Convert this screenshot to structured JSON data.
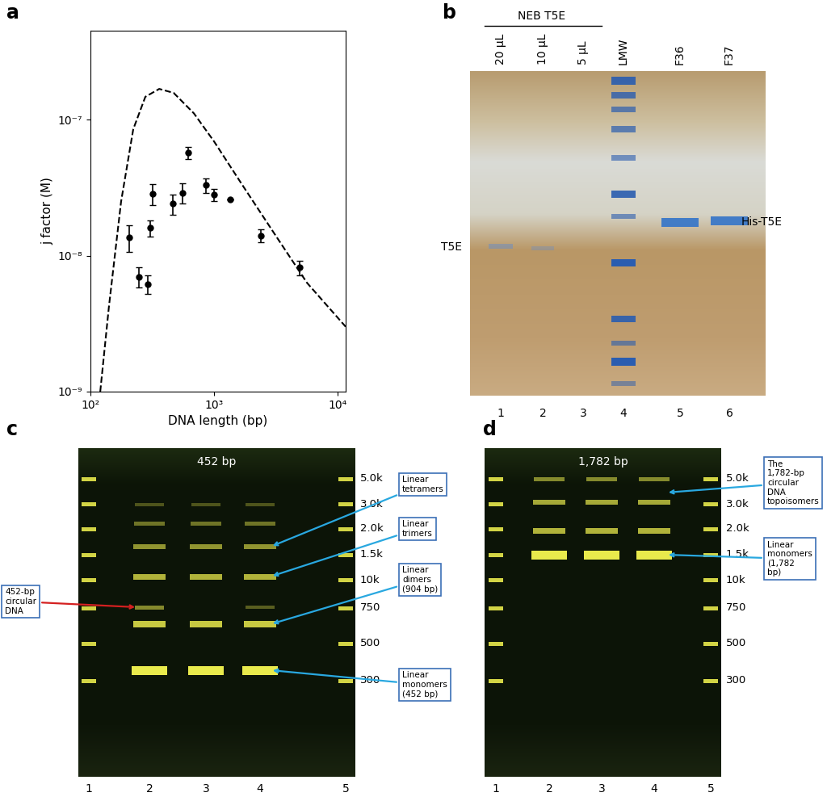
{
  "panel_labels": [
    "a",
    "b",
    "c",
    "d"
  ],
  "chart_data": {
    "type": "scatter",
    "xlabel": "DNA length (bp)",
    "ylabel": "j factor (M)",
    "log": true,
    "xlim": [
      100,
      11600
    ],
    "ylim": [
      1e-09,
      4.5e-07
    ],
    "xticks": [
      {
        "value": 100,
        "label": "10²"
      },
      {
        "value": 1000,
        "label": "10³"
      },
      {
        "value": 10000,
        "label": "10⁴"
      }
    ],
    "yticks": [
      {
        "value": 1e-09,
        "label": "10⁻⁹"
      },
      {
        "value": 1e-08,
        "label": "10⁻⁸"
      },
      {
        "value": 1e-07,
        "label": "10⁻⁷"
      }
    ],
    "series": [
      {
        "type": "line",
        "line_style": "dashed",
        "color": "#000000",
        "x": [
          120,
          141,
          177,
          222,
          278,
          360,
          471,
          687,
          1000,
          1694,
          3090,
          5650,
          11600
        ],
        "values": [
          1e-09,
          4.2e-09,
          2.5e-08,
          8.5e-08,
          1.47e-07,
          1.68e-07,
          1.57e-07,
          1.11e-07,
          6.9e-08,
          3.3e-08,
          1.44e-08,
          6.3e-09,
          3e-09
        ]
      },
      {
        "type": "scatter",
        "marker": "o",
        "color": "#000000",
        "x": [
          206,
          247,
          290,
          305,
          318,
          464,
          556,
          618,
          861,
          1000,
          1352,
          2395,
          4930
        ],
        "values": [
          1.36e-08,
          7e-09,
          6.2e-09,
          1.6e-08,
          2.85e-08,
          2.4e-08,
          2.9e-08,
          5.7e-08,
          3.3e-08,
          2.8e-08,
          2.6e-08,
          1.4e-08,
          8.2e-09
        ],
        "errors": [
          3e-09,
          1.2e-09,
          1e-09,
          2.2e-09,
          5e-09,
          4e-09,
          5e-09,
          6e-09,
          4e-09,
          3e-09,
          0,
          1.5e-09,
          1e-09
        ]
      }
    ]
  },
  "gel_b": {
    "header": "NEB T5E",
    "lanes": [
      "20 µL",
      "10 µL",
      "5 µL",
      "LMW",
      "F36",
      "F37"
    ],
    "lane_numbers": [
      1,
      2,
      3,
      4,
      5,
      6
    ],
    "band_left": "T5E",
    "band_right": "His-T5E"
  },
  "gel_c": {
    "title": "452 bp",
    "ladder": [
      "5.0k",
      "3.0k",
      "2.0k",
      "1.5k",
      "10k",
      "750",
      "500",
      "300"
    ],
    "lane_numbers": [
      1,
      2,
      3,
      4,
      5
    ],
    "circular_label": "452-bp circular DNA",
    "callouts": [
      "Linear tetramers",
      "Linear trimers",
      "Linear dimers (904 bp)",
      "Linear monomers (452 bp)"
    ]
  },
  "gel_d": {
    "title": "1,782 bp",
    "ladder": [
      "5.0k",
      "3.0k",
      "2.0k",
      "1.5k",
      "10k",
      "750",
      "500",
      "300"
    ],
    "lane_numbers": [
      1,
      2,
      3,
      4,
      5
    ],
    "callouts": [
      "The 1,782-bp circular DNA topoisomers",
      "Linear monomers (1,782 bp)"
    ]
  }
}
